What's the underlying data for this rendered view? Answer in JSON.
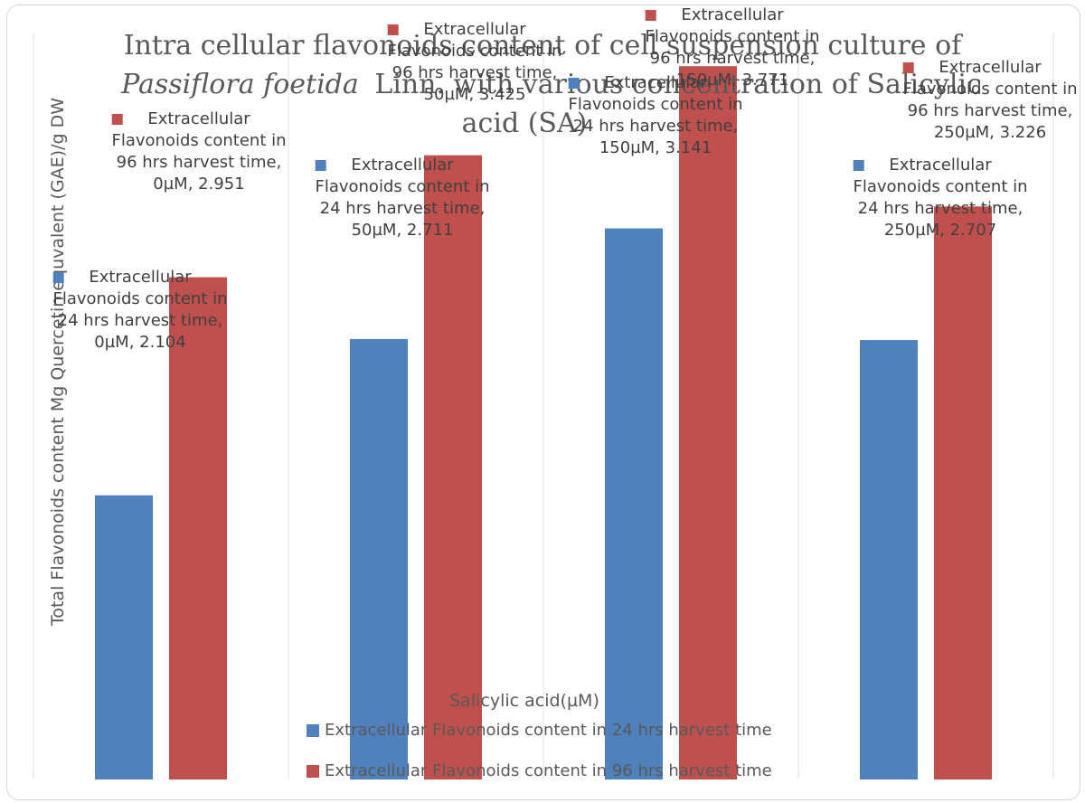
{
  "chart_data": {
    "type": "bar",
    "title_lines": [
      "Intra cellular flavonoids content of cell suspension culture of",
      "Linn. with various concentration of Salicylic",
      "acid (SA)"
    ],
    "title_italic": "Passiflora foetida",
    "xlabel": "Salicylic acid(µM)",
    "ylabel": "Total  Flavonoids content Mg Quercetin equvalent (GAE)/g DW",
    "ylim": [
      1.0,
      4.0
    ],
    "grid": "vertical",
    "legend_position": "bottom",
    "categories": [
      "0µM",
      "50µM",
      "150µM",
      "250µM"
    ],
    "series": [
      {
        "name": "Extracellular Flavonoids content in 24 hrs harvest time",
        "color": "#4f81bd",
        "values": [
          2.104,
          2.711,
          3.141,
          2.707
        ],
        "labels": [
          [
            "Extracellular",
            "Flavonoids content in",
            "24 hrs harvest time,",
            "0µM, 2.104"
          ],
          [
            "Extracellular",
            "Flavonoids content in",
            "24 hrs harvest time,",
            "50µM, 2.711"
          ],
          [
            "Extracellular",
            "Flavonoids content in",
            "24 hrs harvest time,",
            "150µM, 3.141"
          ],
          [
            "Extracellular",
            "Flavonoids content in",
            "24 hrs harvest time,",
            "250µM, 2.707"
          ]
        ]
      },
      {
        "name": "Extracellular Flavonoids content in 96 hrs harvest time",
        "color": "#c0504d",
        "values": [
          2.951,
          3.425,
          3.771,
          3.226
        ],
        "labels": [
          [
            "Extracellular",
            "Flavonoids content in",
            "96 hrs harvest time,",
            "0µM, 2.951"
          ],
          [
            "Extracellular",
            "Flavonoids content in",
            "96 hrs harvest time,",
            "50µM, 3.425"
          ],
          [
            "Extracellular",
            "Flavonoids content in",
            "96 hrs harvest time,",
            "150µM, 3.771"
          ],
          [
            "Extracellular",
            "Flavonoids content in",
            "96 hrs harvest time,",
            "250µM, 3.226"
          ]
        ]
      }
    ]
  }
}
